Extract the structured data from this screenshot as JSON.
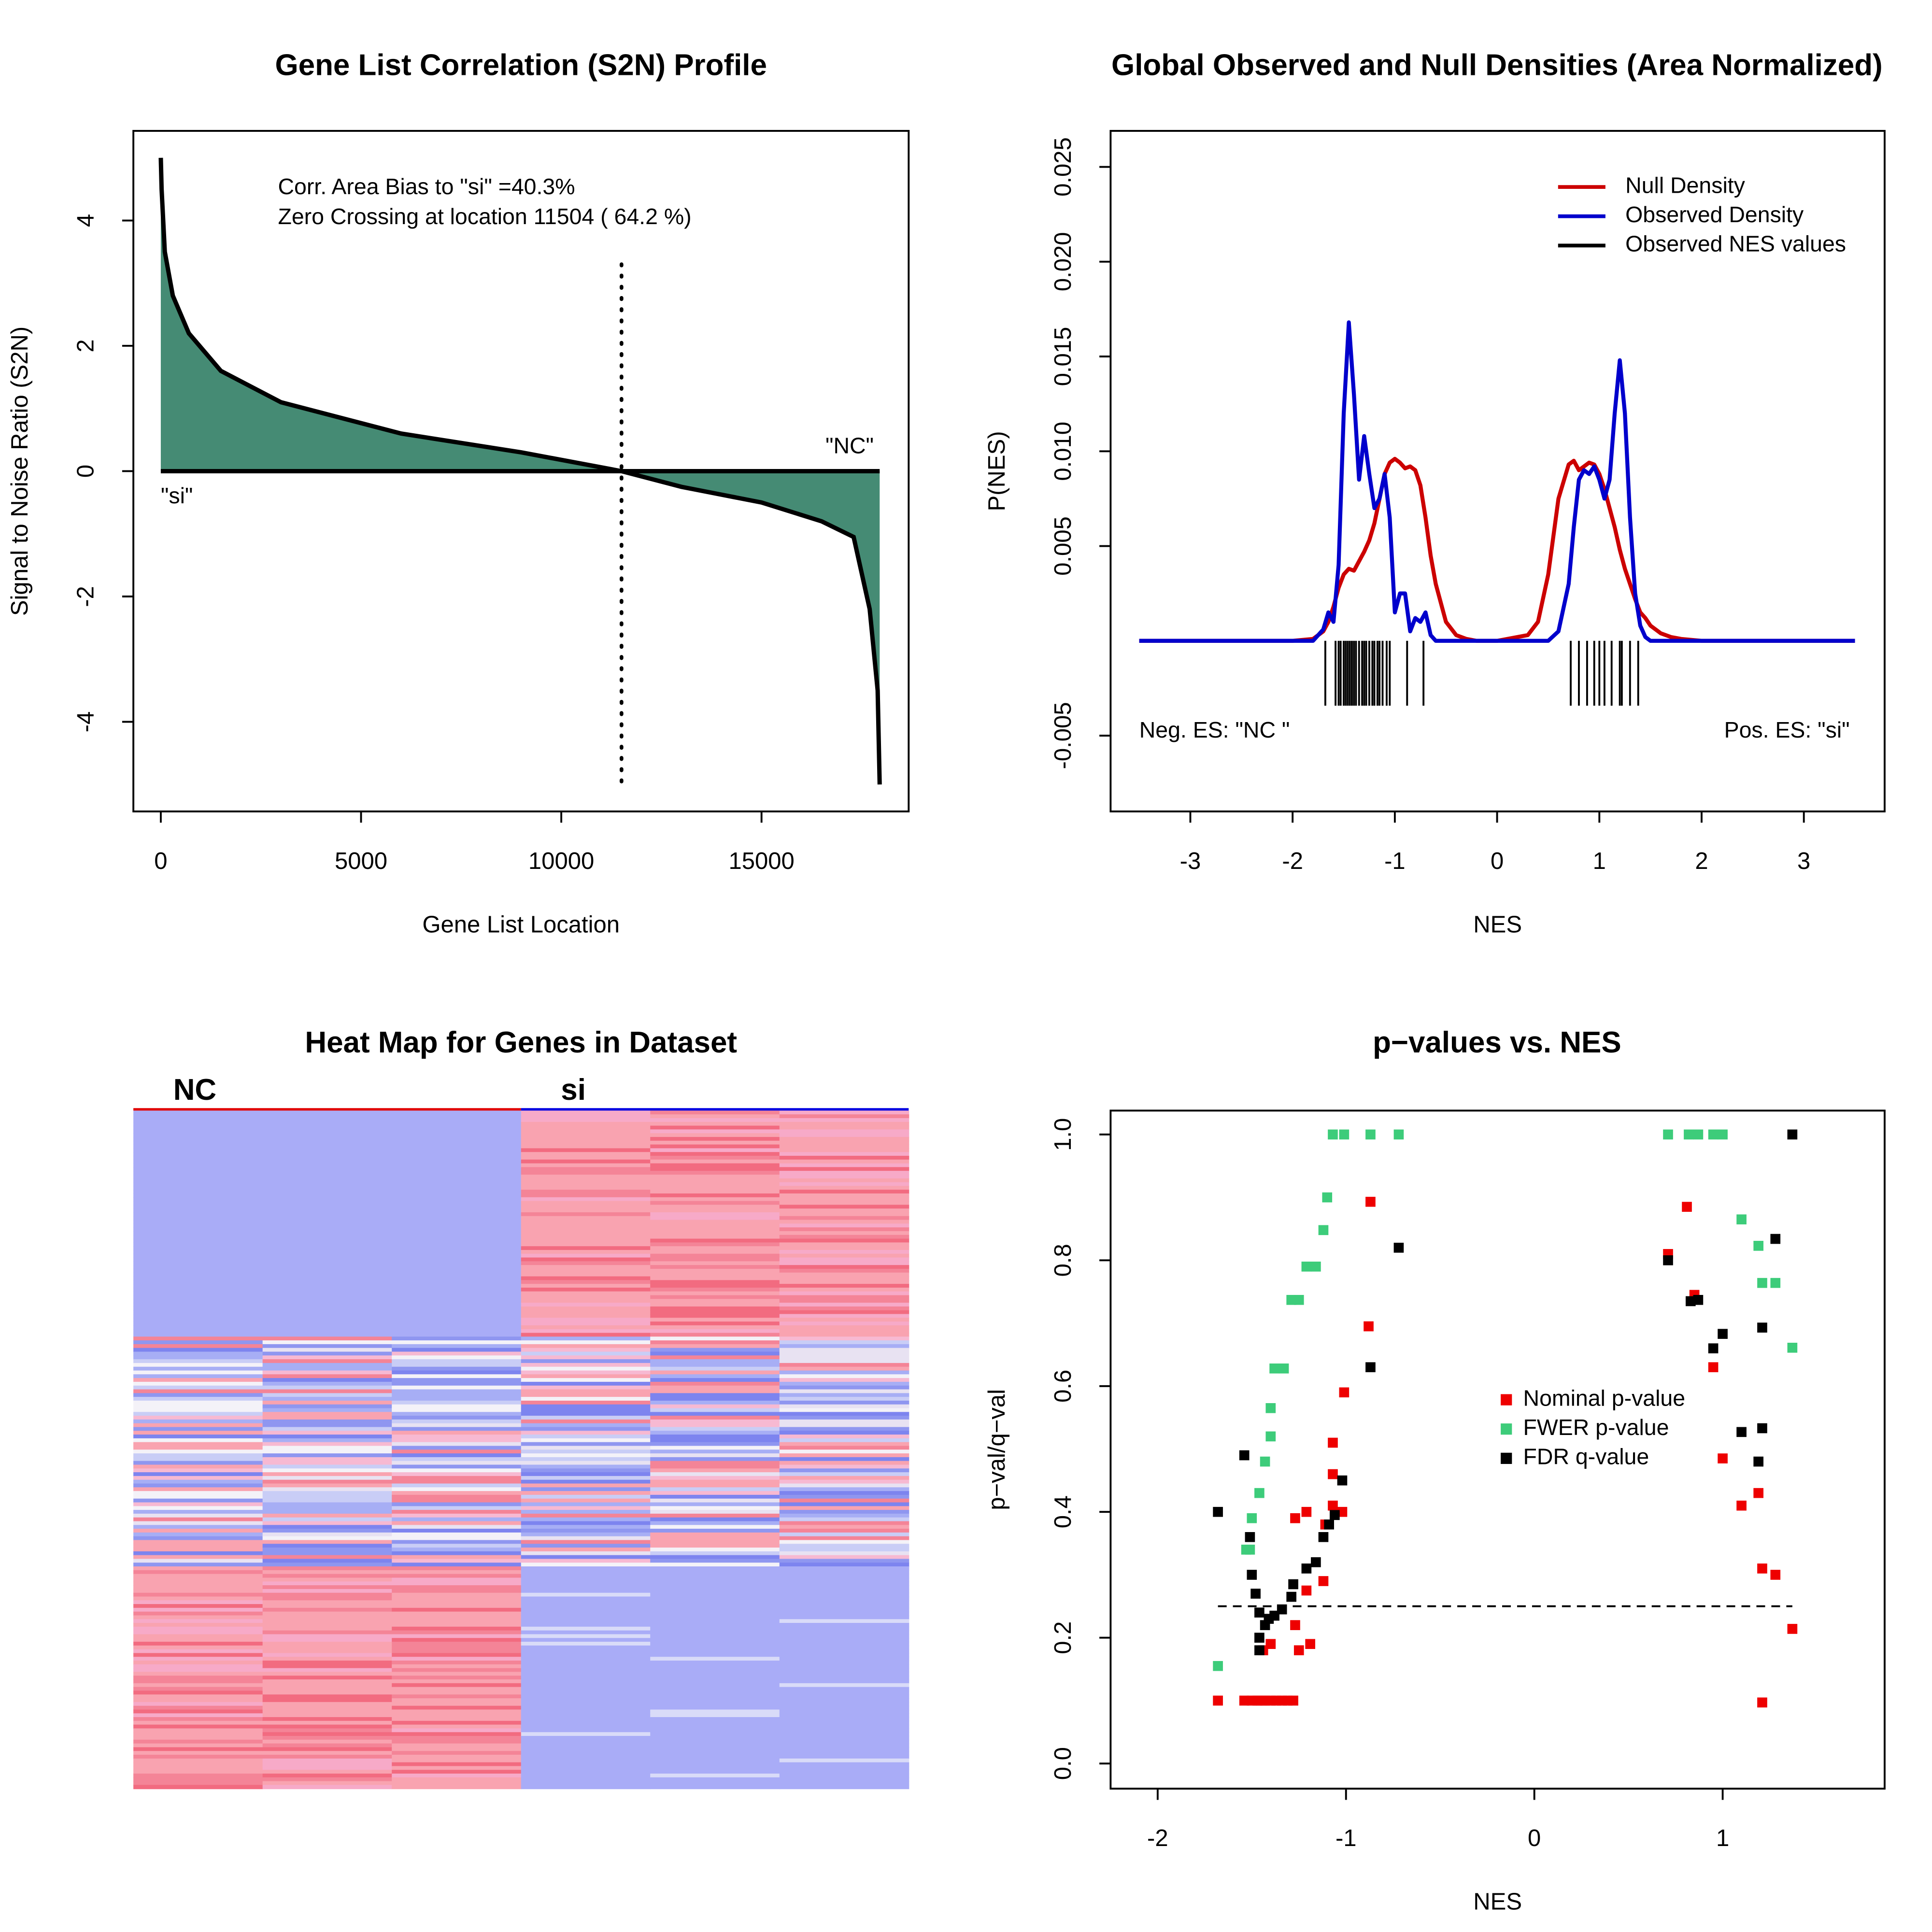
{
  "chart_data": [
    {
      "type": "area",
      "title": "Gene List Correlation (S2N) Profile",
      "x_label": "Gene List Location",
      "y_label": "Signal to Noise Ratio (S2N)",
      "annotations": [
        "Corr. Area Bias to \"si\" =40.3%",
        "Zero Crossing at location  11504  ( 64.2  %)"
      ],
      "end_labels": [
        "\"si\"",
        "\"NC\""
      ],
      "x": [
        0,
        20,
        100,
        300,
        700,
        1500,
        3000,
        6000,
        9000,
        11504,
        13000,
        15000,
        16500,
        17300,
        17700,
        17900,
        17950
      ],
      "values": [
        5,
        4.5,
        3.5,
        2.8,
        2.2,
        1.6,
        1.1,
        0.6,
        0.3,
        0,
        -0.25,
        -0.5,
        -0.8,
        -1.05,
        -2.2,
        -3.5,
        -5
      ],
      "zero_crossing": 11504,
      "color": "#000000",
      "fill": "#458b74",
      "xlim": [
        -685,
        18674
      ],
      "xticks": [
        0,
        5000,
        10000,
        15000
      ],
      "ylim": [
        -5.43,
        5.43
      ],
      "yticks": [
        -4,
        -2,
        0,
        2,
        4
      ]
    },
    {
      "type": "line",
      "title": "Global Observed and Null Densities (Area Normalized)",
      "x_label": "NES",
      "y_label": "P(NES)",
      "annotations": [
        "Neg. ES: \"NC \"",
        "Pos. ES: \"si\""
      ],
      "legend": "top-right",
      "x": [
        -3.5,
        -2,
        -1.8,
        -1.7,
        -1.65,
        -1.6,
        -1.55,
        -1.5,
        -1.45,
        -1.4,
        -1.35,
        -1.3,
        -1.25,
        -1.2,
        -1.15,
        -1.1,
        -1.05,
        -1,
        -0.95,
        -0.9,
        -0.85,
        -0.8,
        -0.75,
        -0.7,
        -0.65,
        -0.6,
        -0.5,
        -0.4,
        -0.3,
        -0.2,
        0,
        0.3,
        0.4,
        0.5,
        0.6,
        0.7,
        0.75,
        0.8,
        0.85,
        0.9,
        0.95,
        1,
        1.05,
        1.1,
        1.15,
        1.2,
        1.25,
        1.3,
        1.35,
        1.4,
        1.45,
        1.5,
        1.6,
        1.7,
        1.8,
        2,
        3.5
      ],
      "series": [
        {
          "name": "Null Density",
          "color": "#cc0000",
          "values": [
            0,
            0,
            0.0001,
            0.0005,
            0.001,
            0.0018,
            0.0028,
            0.0035,
            0.0038,
            0.0037,
            0.0042,
            0.0047,
            0.0053,
            0.0062,
            0.0075,
            0.0088,
            0.0094,
            0.0096,
            0.0094,
            0.0091,
            0.0092,
            0.009,
            0.0082,
            0.0065,
            0.0045,
            0.003,
            0.001,
            0.0003,
            0.0001,
            0,
            0,
            0.0003,
            0.001,
            0.0035,
            0.0075,
            0.0093,
            0.0095,
            0.009,
            0.0092,
            0.0094,
            0.0093,
            0.0088,
            0.008,
            0.007,
            0.006,
            0.0048,
            0.0038,
            0.003,
            0.0022,
            0.0015,
            0.0012,
            0.0008,
            0.0004,
            0.0002,
            0.0001,
            0,
            0
          ]
        },
        {
          "name": "Observed Density",
          "color": "#0000cc",
          "values": [
            0,
            0,
            0,
            0.0006,
            0.0015,
            0.001,
            0.004,
            0.012,
            0.0168,
            0.013,
            0.0085,
            0.0108,
            0.0088,
            0.007,
            0.0075,
            0.0088,
            0.0065,
            0.0015,
            0.0025,
            0.0025,
            0.0005,
            0.0012,
            0.001,
            0.0015,
            0.0003,
            0,
            0,
            0,
            0,
            0,
            0,
            0,
            0,
            0,
            0.0005,
            0.003,
            0.006,
            0.0085,
            0.009,
            0.0088,
            0.0092,
            0.0085,
            0.0075,
            0.0085,
            0.012,
            0.0148,
            0.012,
            0.0065,
            0.0025,
            0.0008,
            0.0002,
            0,
            0,
            0,
            0,
            0,
            0
          ]
        },
        {
          "name": "Observed NES values",
          "color": "#000000",
          "rug": true,
          "x": [
            -1.68,
            -1.58,
            -1.55,
            -1.53,
            -1.5,
            -1.48,
            -1.46,
            -1.44,
            -1.42,
            -1.4,
            -1.38,
            -1.35,
            -1.32,
            -1.3,
            -1.28,
            -1.25,
            -1.22,
            -1.2,
            -1.17,
            -1.15,
            -1.12,
            -1.08,
            -1.05,
            -0.88,
            -0.72,
            0.72,
            0.8,
            0.88,
            0.95,
            1.0,
            1.05,
            1.12,
            1.2,
            1.22,
            1.3,
            1.38
          ]
        }
      ],
      "xlim": [
        -3.78,
        3.79
      ],
      "xticks": [
        -3,
        -2,
        -1,
        0,
        1,
        2,
        3
      ],
      "ylim": [
        -0.009,
        0.0269
      ],
      "yticks": [
        -0.005,
        0.005,
        {
          "value": 0.01,
          "label": "0.010"
        },
        0.015,
        {
          "value": 0.02,
          "label": "0.020"
        },
        0.025
      ]
    },
    {
      "type": "heatmap",
      "title": "Heat Map for Genes in Dataset",
      "groups": [
        {
          "name": "NC",
          "color": "#e00000"
        },
        {
          "name": "si",
          "color": "#0000e0"
        }
      ]
    },
    {
      "type": "scatter",
      "title": "p−values vs. NES",
      "x_label": "NES",
      "y_label": "p−val/q−val",
      "legend": "center-right",
      "hline": 0.25,
      "series": [
        {
          "name": "Nominal p-value",
          "color": "#ee0000",
          "x": [
            -1.68,
            -1.54,
            -1.5,
            -1.47,
            -1.45,
            -1.43,
            -1.4,
            -1.37,
            -1.34,
            -1.31,
            -1.28,
            -1.44,
            -1.4,
            -1.27,
            -1.25,
            -1.19,
            -1.27,
            -1.21,
            -1.21,
            -1.12,
            -1.11,
            -1.07,
            -1.02,
            -1.07,
            -1.07,
            -1.01,
            -0.88,
            -0.87,
            0.71,
            0.81,
            0.85,
            0.95,
            1.0,
            1.1,
            1.19,
            1.21,
            1.28,
            1.21,
            1.37
          ],
          "values": [
            0.1,
            0.1,
            0.1,
            0.1,
            0.1,
            0.1,
            0.1,
            0.1,
            0.1,
            0.1,
            0.1,
            0.18,
            0.19,
            0.22,
            0.18,
            0.19,
            0.39,
            0.4,
            0.275,
            0.29,
            0.38,
            0.41,
            0.4,
            0.46,
            0.51,
            0.59,
            0.695,
            0.893,
            0.81,
            0.885,
            0.745,
            0.63,
            0.485,
            0.41,
            0.43,
            0.31,
            0.3,
            0.097,
            0.214
          ]
        },
        {
          "name": "FWER p-value",
          "color": "#3dcc7a",
          "x": [
            -1.68,
            -1.53,
            -1.51,
            -1.5,
            -1.46,
            -1.43,
            -1.4,
            -1.4,
            -1.38,
            -1.33,
            -1.29,
            -1.25,
            -1.21,
            -1.16,
            -1.12,
            -1.1,
            -1.07,
            -1.01,
            -0.87,
            -0.72,
            0.71,
            0.82,
            0.87,
            0.95,
            1.0,
            1.1,
            1.19,
            1.21,
            1.28,
            1.37
          ],
          "values": [
            0.155,
            0.34,
            0.34,
            0.39,
            0.43,
            0.48,
            0.52,
            0.565,
            0.628,
            0.628,
            0.737,
            0.737,
            0.79,
            0.79,
            0.848,
            0.9,
            1.0,
            1.0,
            1.0,
            1.0,
            1.0,
            1.0,
            1.0,
            1.0,
            1.0,
            0.865,
            0.823,
            0.764,
            0.764,
            0.661
          ]
        },
        {
          "name": "FDR q-value",
          "color": "#000000",
          "x": [
            -1.68,
            -1.54,
            -1.51,
            -1.5,
            -1.48,
            -1.46,
            -1.46,
            -1.46,
            -1.43,
            -1.41,
            -1.38,
            -1.34,
            -1.29,
            -1.28,
            -1.21,
            -1.16,
            -1.12,
            -1.09,
            -1.06,
            -1.02,
            -0.87,
            -0.72,
            0.71,
            0.83,
            0.87,
            0.95,
            1.0,
            1.1,
            1.19,
            1.21,
            1.21,
            1.28,
            1.37
          ],
          "values": [
            0.4,
            0.49,
            0.36,
            0.3,
            0.27,
            0.24,
            0.2,
            0.18,
            0.22,
            0.23,
            0.235,
            0.245,
            0.265,
            0.285,
            0.31,
            0.32,
            0.36,
            0.38,
            0.395,
            0.45,
            0.63,
            0.82,
            0.8,
            0.735,
            0.737,
            0.66,
            0.683,
            0.527,
            0.48,
            0.533,
            0.693,
            0.834,
            1.0
          ]
        }
      ],
      "xlim": [
        -2.25,
        1.86
      ],
      "xticks": [
        -2,
        -1,
        0,
        1
      ],
      "ylim": [
        -0.04,
        1.038
      ],
      "yticks": [
        {
          "value": 0,
          "label": "0.0"
        },
        0.2,
        0.4,
        0.6,
        0.8,
        {
          "value": 1,
          "label": "1.0"
        }
      ]
    }
  ]
}
